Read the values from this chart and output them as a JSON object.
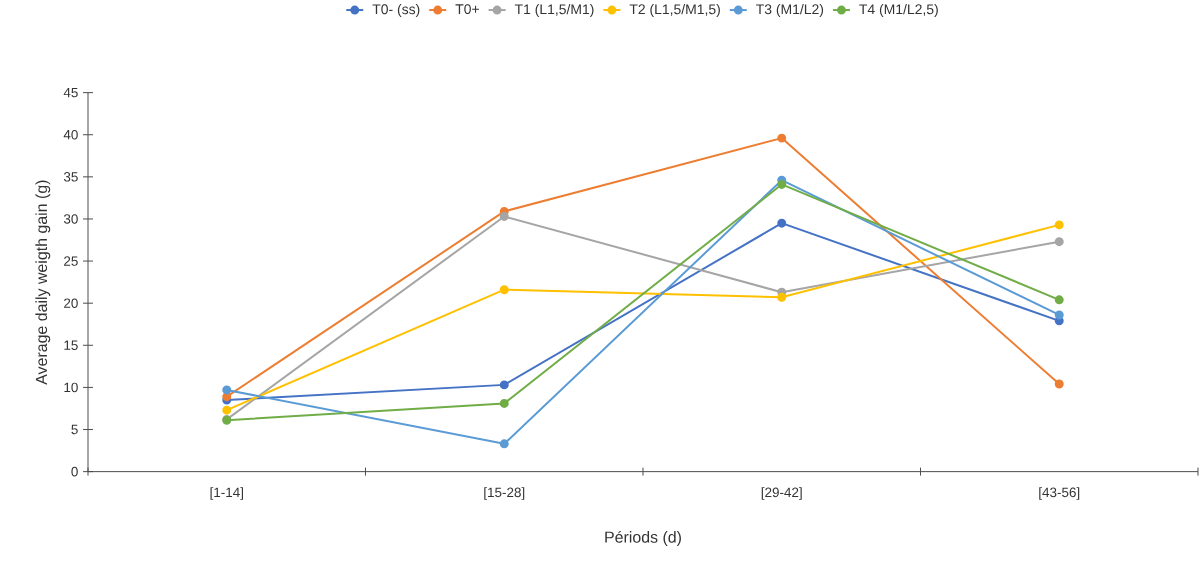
{
  "chart_data": {
    "type": "line",
    "xlabel": "Périods (d)",
    "ylabel": "Average daily weigth gain (g)",
    "categories": [
      "[1-14]",
      "[15-28]",
      "[29-42]",
      "[43-56]"
    ],
    "series": [
      {
        "name": "T0- (ss)",
        "color": "#4472c4",
        "values": [
          8.5,
          10.3,
          29.5,
          17.9
        ]
      },
      {
        "name": "T0+",
        "color": "#ed7d31",
        "values": [
          8.9,
          30.9,
          39.6,
          10.4
        ]
      },
      {
        "name": "T1 (L1,5/M1)",
        "color": "#a5a5a5",
        "values": [
          6.2,
          30.3,
          21.3,
          27.3
        ]
      },
      {
        "name": "T2 (L1,5/M1,5)",
        "color": "#ffc000",
        "values": [
          7.3,
          21.6,
          20.7,
          29.3
        ]
      },
      {
        "name": "T3 (M1/L2)",
        "color": "#5b9bd5",
        "values": [
          9.7,
          3.3,
          34.6,
          18.6
        ]
      },
      {
        "name": "T4 (M1/L2,5)",
        "color": "#70ad47",
        "values": [
          6.1,
          8.1,
          34.1,
          20.4
        ]
      }
    ],
    "ylim": [
      0,
      45
    ],
    "yticks": [
      0,
      5,
      10,
      15,
      20,
      25,
      30,
      35,
      40,
      45
    ],
    "grid": false,
    "legend": "top",
    "marker": "circle",
    "line_style": "solid"
  }
}
